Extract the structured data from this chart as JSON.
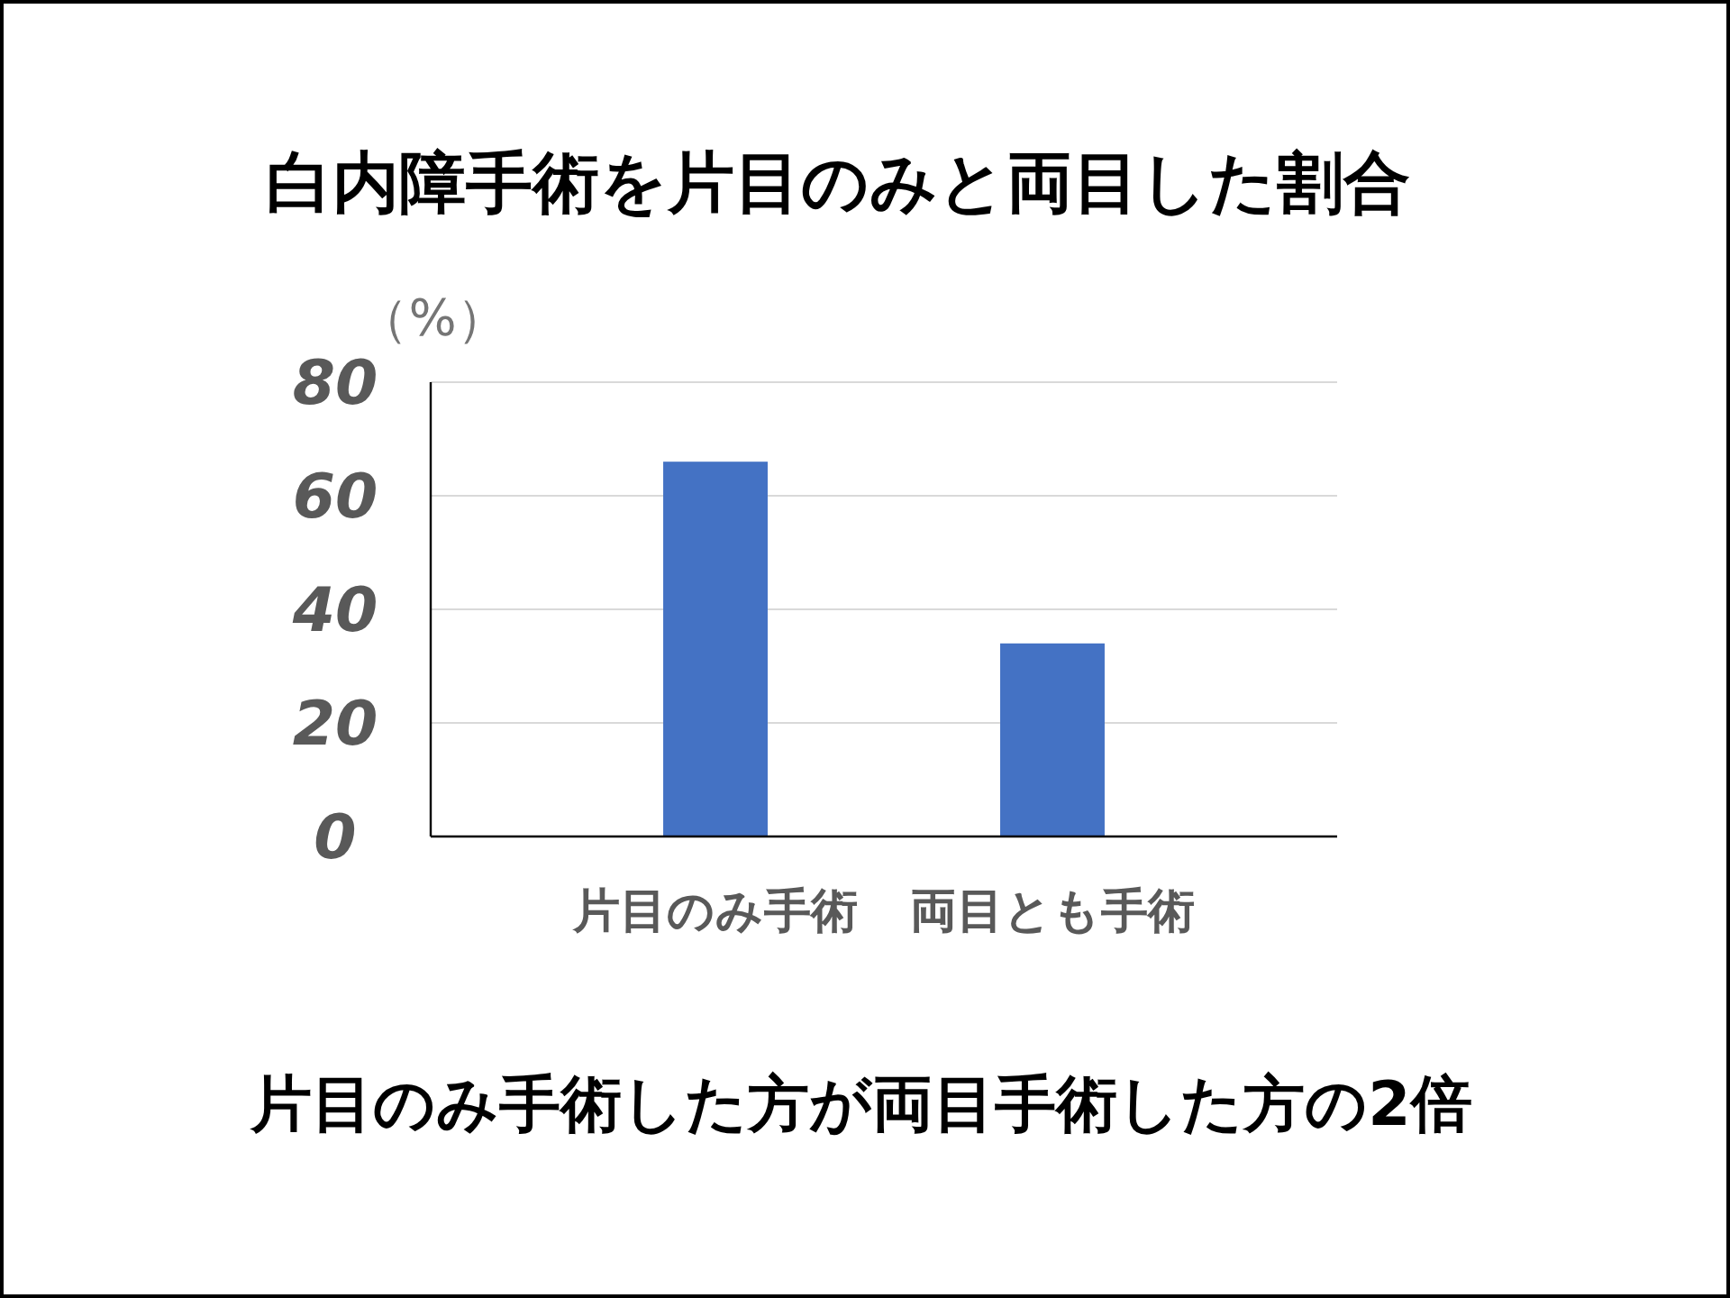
{
  "chart_data": {
    "type": "bar",
    "title": "白内障手術を片目のみと両目した割合",
    "ylabel": "（%）",
    "categories": [
      "片目のみ手術",
      "両目とも手術"
    ],
    "values": [
      66,
      34
    ],
    "color": "#4472c4",
    "ylim": [
      0,
      80
    ],
    "yticks": [
      0,
      20,
      40,
      60,
      80
    ],
    "grid": "y",
    "annotations": [
      "片目のみ手術した方が両目手術した方の2倍"
    ]
  }
}
